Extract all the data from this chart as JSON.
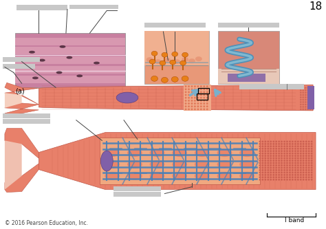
{
  "page_number": "18",
  "copyright": "© 2016 Pearson Education, Inc.",
  "label_a": "(a)",
  "label_i_band": "I band",
  "bg": "#ffffff",
  "c_salmon": "#e8806a",
  "c_salmon_dark": "#c05848",
  "c_salmon_light": "#f0a890",
  "c_salmon_mid": "#de7060",
  "c_purple": "#8060a8",
  "c_blue_net": "#4880b8",
  "c_blue_arrow": "#78b0cc",
  "c_orange": "#e88018",
  "c_gray_label": "#c8c8c8",
  "c_micro_bg": "#c88098",
  "c_micro_stripe": "#a06070",
  "c_micro_dark": "#483040",
  "c_inset2_bg": "#e89888",
  "c_inset3_bg": "#e09888",
  "c_dot": "#cc6050"
}
